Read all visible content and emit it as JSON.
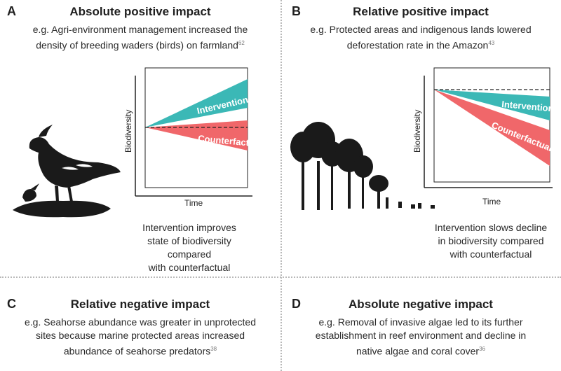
{
  "panels": {
    "a": {
      "letter": "A",
      "title": "Absolute positive impact",
      "desc_line1": "e.g. Agri-environment management increased the",
      "desc_line2": "density of breeding waders (birds) on farmland",
      "ref": "62",
      "y_label": "Biodiversity",
      "x_label": "Time",
      "intervention_label": "Intervention",
      "counterfactual_label": "Counterfactual",
      "caption_line1": "Intervention improves",
      "caption_line2": "state of biodiversity compared",
      "caption_line3": "with counterfactual"
    },
    "b": {
      "letter": "B",
      "title": "Relative positive impact",
      "desc_line1": "e.g. Protected areas and indigenous lands lowered",
      "desc_line2": "deforestation rate in the Amazon",
      "ref": "43",
      "y_label": "Biodiversity",
      "x_label": "Time",
      "intervention_label": "Intervention",
      "counterfactual_label": "Counterfactual",
      "caption_line1": "Intervention slows decline",
      "caption_line2": "in biodiversity compared",
      "caption_line3": "with counterfactual"
    },
    "c": {
      "letter": "C",
      "title": "Relative negative impact",
      "desc_line1": "e.g. Seahorse abundance was greater in unprotected",
      "desc_line2": "sites because marine protected areas increased",
      "desc_line3": "abundance of seahorse predators",
      "ref": "38"
    },
    "d": {
      "letter": "D",
      "title": "Absolute negative impact",
      "desc_line1": "e.g. Removal of invasive algae led to its further",
      "desc_line2": "establishment in reef environment and decline in",
      "desc_line3": "native algae and coral cover",
      "ref": "36"
    }
  },
  "colors": {
    "intervention": "#3bb8b6",
    "counterfactual": "#f0676a",
    "axis": "#222222",
    "silhouette": "#1a1a1a"
  }
}
